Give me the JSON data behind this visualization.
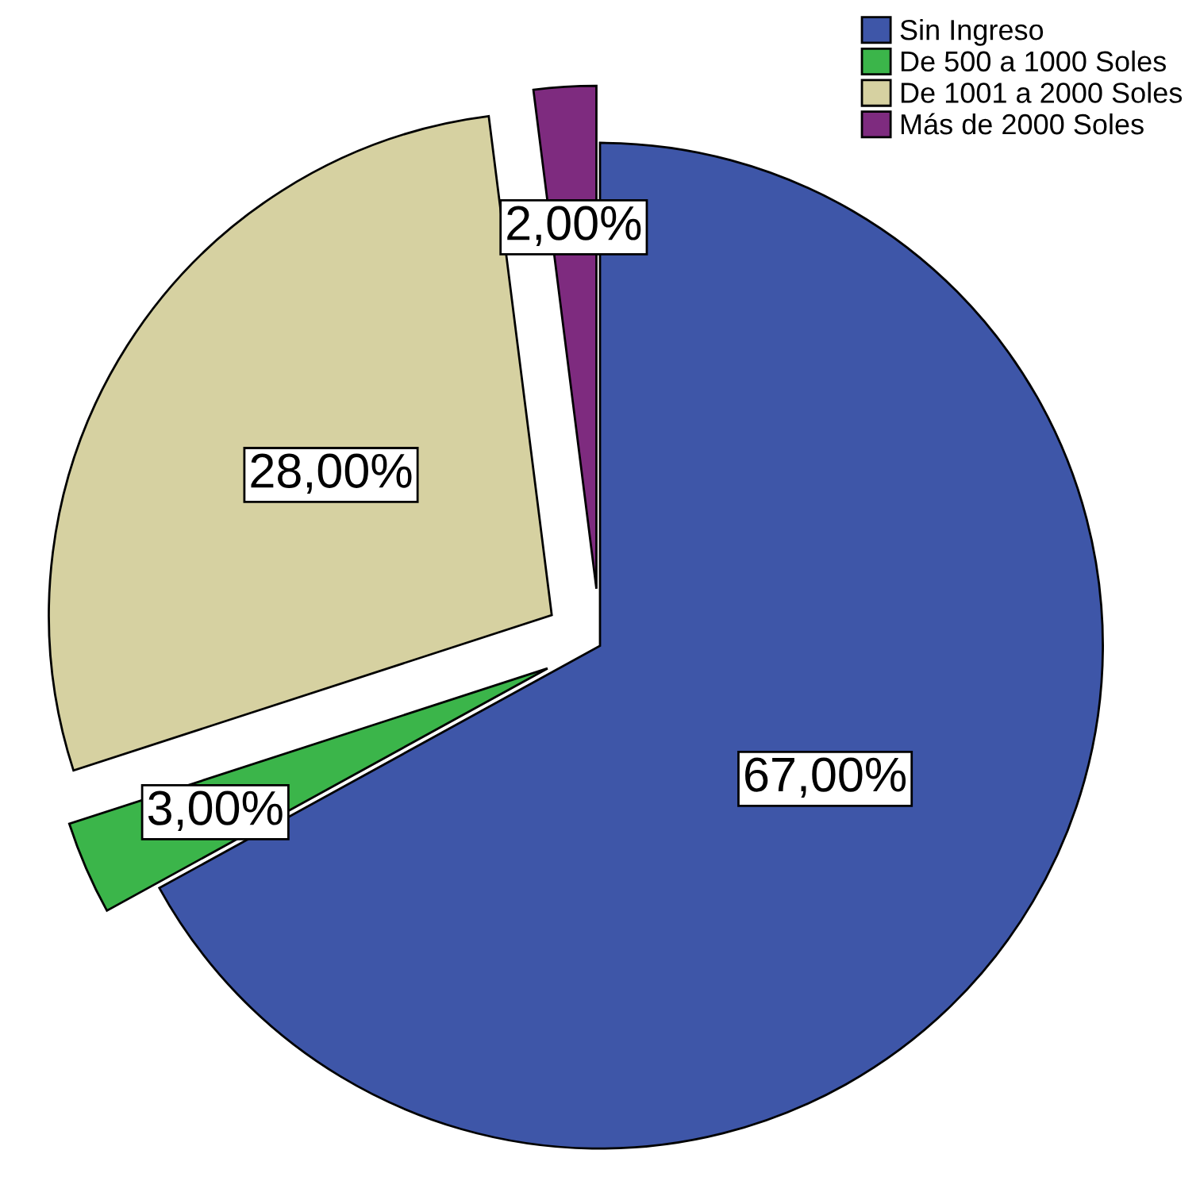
{
  "chart_data": {
    "type": "pie",
    "categories": [
      "Sin Ingreso",
      "De 500 a 1000 Soles",
      "De 1001 a 2000 Soles",
      "Más de 2000 Soles"
    ],
    "values": [
      67,
      3,
      28,
      2
    ],
    "colors": [
      "#3e56a8",
      "#3bb54a",
      "#d6d1a1",
      "#7e2b7f"
    ],
    "value_labels": [
      "67,00%",
      "3,00%",
      "28,00%",
      "2,00%"
    ],
    "legend": "top right"
  }
}
